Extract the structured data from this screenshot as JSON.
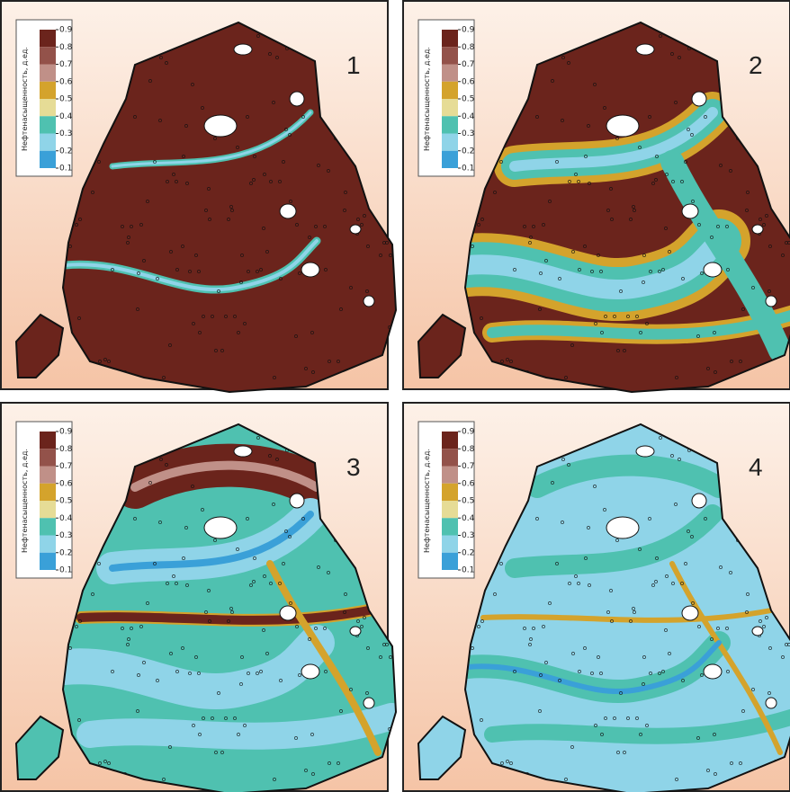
{
  "panels": [
    {
      "number": "1",
      "legend": {
        "title": "Нефтенасыщенность, д.ед.",
        "ticks": [
          0.9,
          0.8,
          0.7,
          0.6,
          0.5,
          0.4,
          0.3,
          0.2,
          0.1
        ]
      }
    },
    {
      "number": "2",
      "legend": {
        "title": "Нефтенасыщенность, д.ед.",
        "ticks": [
          0.9,
          0.8,
          0.7,
          0.6,
          0.5,
          0.4,
          0.3,
          0.2,
          0.1
        ]
      }
    },
    {
      "number": "3",
      "legend": {
        "title": "Нефтенасыщенность, д.ед.",
        "ticks": [
          0.9,
          0.8,
          0.7,
          0.6,
          0.5,
          0.4,
          0.3,
          0.2,
          0.1
        ]
      }
    },
    {
      "number": "4",
      "legend": {
        "title": "Нефтенасыщенность, д.ед.",
        "ticks": [
          0.9,
          0.8,
          0.7,
          0.6,
          0.5,
          0.4,
          0.3,
          0.2,
          0.1
        ]
      }
    }
  ],
  "colors": [
    "#6b241c",
    "#93524a",
    "#c09088",
    "#d4a32c",
    "#e6dc96",
    "#4fc1b0",
    "#8fd4e8",
    "#3aa0d8"
  ]
}
